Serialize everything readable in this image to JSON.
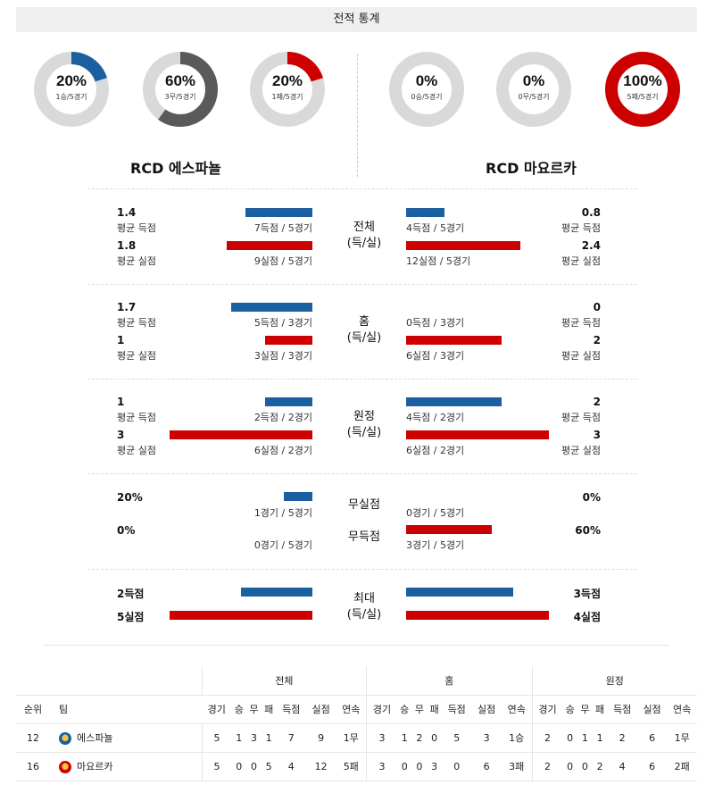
{
  "title": "전적 통계",
  "colors": {
    "blue": "#1a5fa0",
    "red": "#cc0000",
    "gray": "#5a5a5a",
    "track": "#d9d9d9"
  },
  "home": {
    "name": "RCD 에스파뇰",
    "donuts": [
      {
        "pct": "20%",
        "sub": "1승/5경기",
        "fraction": 0.2,
        "color": "#1a5fa0"
      },
      {
        "pct": "60%",
        "sub": "3무/5경기",
        "fraction": 0.6,
        "color": "#5a5a5a"
      },
      {
        "pct": "20%",
        "sub": "1패/5경기",
        "fraction": 0.2,
        "color": "#cc0000"
      }
    ]
  },
  "away": {
    "name": "RCD 마요르카",
    "donuts": [
      {
        "pct": "0%",
        "sub": "0승/5경기",
        "fraction": 0,
        "color": "#1a5fa0"
      },
      {
        "pct": "0%",
        "sub": "0무/5경기",
        "fraction": 0,
        "color": "#5a5a5a"
      },
      {
        "pct": "100%",
        "sub": "5패/5경기",
        "fraction": 1.0,
        "color": "#cc0000"
      }
    ]
  },
  "sections": {
    "total": {
      "label1": "전체",
      "label2": "(득/실)",
      "home_for": {
        "value": "1.4",
        "caption": "평균 득점",
        "detail": "7득점 / 5경기"
      },
      "home_against": {
        "value": "1.8",
        "caption": "평균 실점",
        "detail": "9실점 / 5경기"
      },
      "away_for": {
        "value": "0.8",
        "caption": "평균 득점",
        "detail": "4득점 / 5경기"
      },
      "away_against": {
        "value": "2.4",
        "caption": "평균 실점",
        "detail": "12실점 / 5경기"
      }
    },
    "home": {
      "label1": "홈",
      "label2": "(득/실)",
      "home_for": {
        "value": "1.7",
        "caption": "평균 득점",
        "detail": "5득점 / 3경기"
      },
      "home_against": {
        "value": "1",
        "caption": "평균 실점",
        "detail": "3실점 / 3경기"
      },
      "away_for": {
        "value": "0",
        "caption": "평균 득점",
        "detail": "0득점 / 3경기"
      },
      "away_against": {
        "value": "2",
        "caption": "평균 실점",
        "detail": "6실점 / 3경기"
      }
    },
    "away": {
      "label1": "원정",
      "label2": "(득/실)",
      "home_for": {
        "value": "1",
        "caption": "평균 득점",
        "detail": "2득점 / 2경기"
      },
      "home_against": {
        "value": "3",
        "caption": "평균 실점",
        "detail": "6실점 / 2경기"
      },
      "away_for": {
        "value": "2",
        "caption": "평균 득점",
        "detail": "4득점 / 2경기"
      },
      "away_against": {
        "value": "3",
        "caption": "평균 실점",
        "detail": "6실점 / 2경기"
      }
    },
    "clean": {
      "label_cs": "무실점",
      "label_fts": "무득점",
      "home_cs": {
        "value": "20%",
        "detail": "1경기 / 5경기"
      },
      "home_fts": {
        "value": "0%",
        "detail": "0경기 / 5경기"
      },
      "away_cs": {
        "value": "0%",
        "detail": "0경기 / 5경기"
      },
      "away_fts": {
        "value": "60%",
        "detail": "3경기 / 5경기"
      }
    },
    "max": {
      "label1": "최대",
      "label2": "(득/실)",
      "home_for": "2득점",
      "home_against": "5실점",
      "away_for": "3득점",
      "away_against": "4실점"
    }
  },
  "standings": {
    "group_total": "전체",
    "group_home": "홈",
    "group_away": "원정",
    "col_rank": "순위",
    "col_team": "팀",
    "cols": [
      "경기",
      "승",
      "무",
      "패",
      "득점",
      "실점",
      "연속"
    ],
    "rows": [
      {
        "rank": "12",
        "team": "에스파뇰",
        "logo_color": "#1a5fa0",
        "total": [
          "5",
          "1",
          "3",
          "1",
          "7",
          "9",
          "1무"
        ],
        "home": [
          "3",
          "1",
          "2",
          "0",
          "5",
          "3",
          "1승"
        ],
        "away": [
          "2",
          "0",
          "1",
          "1",
          "2",
          "6",
          "1무"
        ]
      },
      {
        "rank": "16",
        "team": "마요르카",
        "logo_color": "#cc0000",
        "total": [
          "5",
          "0",
          "0",
          "5",
          "4",
          "12",
          "5패"
        ],
        "home": [
          "3",
          "0",
          "0",
          "3",
          "0",
          "6",
          "3패"
        ],
        "away": [
          "2",
          "0",
          "0",
          "2",
          "4",
          "6",
          "2패"
        ]
      }
    ]
  }
}
